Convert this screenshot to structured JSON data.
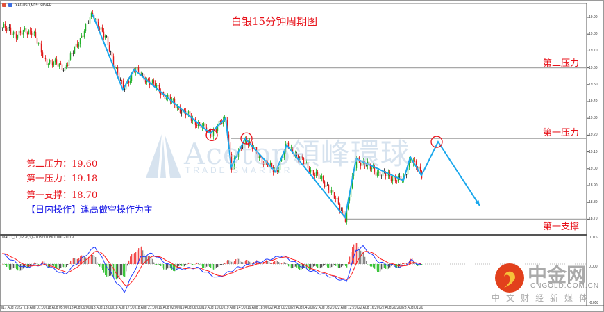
{
  "window": {
    "symbol_label": "XAGUSD,M15:  SILVER",
    "indicator_label": "MACD_DL(12,26,9) -0.082 0.086 0.000 -0.019"
  },
  "colors": {
    "up": "#22b02a",
    "down": "#e01b1b",
    "zigzag": "#1aa7ec",
    "level_line": "#a8a8a8",
    "annotation": "#e8141c",
    "note_blue": "#1414e6",
    "macd_line": "#1f3cff",
    "signal_line": "#ff1a1a"
  },
  "chart_data": {
    "type": "candlestick",
    "timeframe": "M15",
    "title": "白银15分钟周期图",
    "price_axis": {
      "ticks": [
        "19.90",
        "19.80",
        "19.70",
        "19.60",
        "19.50",
        "19.40",
        "19.30",
        "19.20",
        "19.10",
        "19.00",
        "18.90",
        "18.80",
        "18.70"
      ],
      "range": [
        18.65,
        19.98
      ]
    },
    "time_axis": {
      "ticks": [
        "17 Aug 2022",
        "18 Aug 01:00",
        "18 Aug 05:00",
        "18 Aug 09:00",
        "18 Aug 13:00",
        "18 Aug 17:00",
        "18 Aug 21:00",
        "19 Aug 02:00",
        "19 Aug 06:00",
        "19 Aug 10:00",
        "19 Aug 14:00",
        "19 Aug 18:00",
        "22 Aug 00:20",
        "22 Aug 04:20",
        "22 Aug 08:20",
        "22 Aug 12:20",
        "22 Aug 16:20",
        "22 Aug 20:20",
        "23 Aug 01:20"
      ],
      "bars_per_tick": 16
    },
    "price_path": [
      [
        0,
        19.84
      ],
      [
        10,
        19.8
      ],
      [
        22,
        19.82
      ],
      [
        30,
        19.65
      ],
      [
        45,
        19.6
      ],
      [
        52,
        19.71
      ],
      [
        65,
        19.92
      ],
      [
        75,
        19.76
      ],
      [
        87,
        19.47
      ],
      [
        95,
        19.59
      ],
      [
        110,
        19.49
      ],
      [
        130,
        19.34
      ],
      [
        150,
        19.21
      ],
      [
        161,
        19.3
      ],
      [
        165,
        19.01
      ],
      [
        175,
        19.18
      ],
      [
        187,
        19.05
      ],
      [
        197,
        18.98
      ],
      [
        205,
        19.14
      ],
      [
        220,
        19.01
      ],
      [
        235,
        18.89
      ],
      [
        247,
        18.71
      ],
      [
        255,
        19.06
      ],
      [
        272,
        18.97
      ],
      [
        289,
        18.93
      ],
      [
        294,
        19.07
      ],
      [
        302,
        18.96
      ]
    ],
    "zigzag": [
      [
        65,
        19.92
      ],
      [
        87,
        19.47
      ],
      [
        95,
        19.59
      ],
      [
        150,
        19.21
      ],
      [
        161,
        19.3
      ],
      [
        165,
        19.01
      ],
      [
        175,
        19.18
      ],
      [
        197,
        18.98
      ],
      [
        205,
        19.14
      ],
      [
        247,
        18.71
      ],
      [
        255,
        19.06
      ],
      [
        289,
        18.93
      ],
      [
        294,
        19.07
      ],
      [
        302,
        18.96
      ],
      [
        314,
        19.16
      ],
      [
        344,
        18.78
      ]
    ],
    "circles": [
      [
        151,
        19.2
      ],
      [
        176,
        19.18
      ],
      [
        313,
        19.16
      ]
    ],
    "levels": [
      {
        "label": "第二压力",
        "price": 19.6,
        "from_bar": 45
      },
      {
        "label": "第一压力",
        "price": 19.18,
        "from_bar": 165
      },
      {
        "label": "第一支撑",
        "price": 18.7,
        "from_bar": 247
      }
    ],
    "macd": {
      "params": "12,26,9",
      "axis_ticks": [
        "0.076",
        "0.000",
        "-0.058"
      ],
      "line": [
        [
          0,
          0.03
        ],
        [
          15,
          -0.01
        ],
        [
          30,
          0
        ],
        [
          45,
          -0.03
        ],
        [
          67,
          0.05
        ],
        [
          82,
          -0.05
        ],
        [
          88,
          -0.08
        ],
        [
          100,
          0.02
        ],
        [
          108,
          0.03
        ],
        [
          125,
          -0.016
        ],
        [
          140,
          -0.01
        ],
        [
          155,
          -0.04
        ],
        [
          170,
          -0.01
        ],
        [
          180,
          0
        ],
        [
          202,
          0.024
        ],
        [
          220,
          -0.016
        ],
        [
          240,
          -0.04
        ],
        [
          248,
          -0.05
        ],
        [
          255,
          0.04
        ],
        [
          260,
          0.05
        ],
        [
          272,
          0.004
        ],
        [
          287,
          -0.01
        ],
        [
          295,
          0.01
        ],
        [
          302,
          -0.004
        ]
      ]
    }
  },
  "notes": {
    "line1": "第二压力：19.60",
    "line2": "第一压力：19.18",
    "line3": "第一支撑：18.70",
    "line4": "【日内操作】逢高做空操作为主"
  },
  "watermark": {
    "brand": "Acetop領峰環球",
    "slogan": "TRADE SMARTER"
  },
  "logo": {
    "name": "中金网",
    "domain": "CNGOLD.COM.CN",
    "tagline": "中文财经新媒体"
  }
}
